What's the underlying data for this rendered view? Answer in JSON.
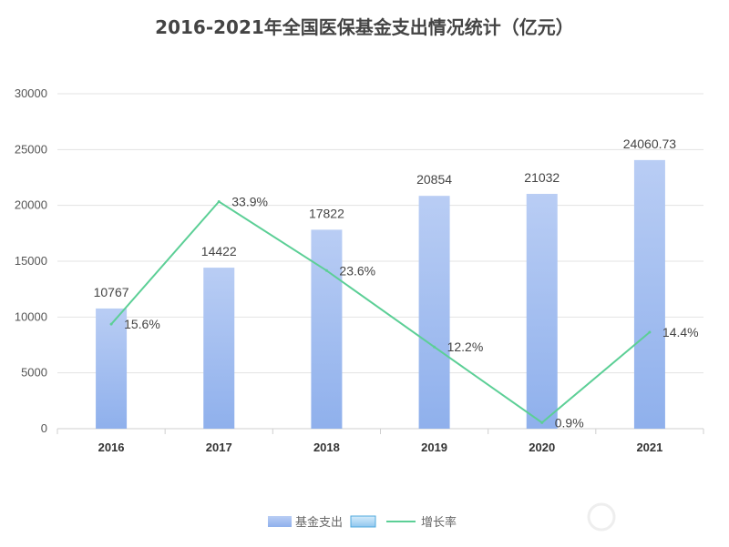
{
  "chart_data": {
    "type": "bar",
    "title": "2016-2021年全国医保基金支出情况统计（亿元）",
    "categories": [
      "2016",
      "2017",
      "2018",
      "2019",
      "2020",
      "2021"
    ],
    "series": [
      {
        "name": "基金支出",
        "type": "bar",
        "values": [
          10767,
          14422,
          17822,
          20854,
          21032,
          24060.73
        ],
        "labels": [
          "10767",
          "14422",
          "17822",
          "20854",
          "21032",
          "24060.73"
        ],
        "color": "#9db8ef"
      },
      {
        "name": "增长率",
        "type": "line",
        "values": [
          15.6,
          33.9,
          23.6,
          12.2,
          0.9,
          14.4
        ],
        "labels": [
          "15.6%",
          "33.9%",
          "23.6%",
          "12.2%",
          "0.9%",
          "14.4%"
        ],
        "unit": "%",
        "color": "#5ccf96"
      }
    ],
    "y_ticks": [
      "0",
      "5000",
      "10000",
      "15000",
      "20000",
      "25000",
      "30000"
    ],
    "ylim": [
      0,
      30000
    ],
    "grid": true,
    "legend_position": "bottom",
    "legend": [
      "基金支出",
      "",
      "增长率"
    ]
  }
}
